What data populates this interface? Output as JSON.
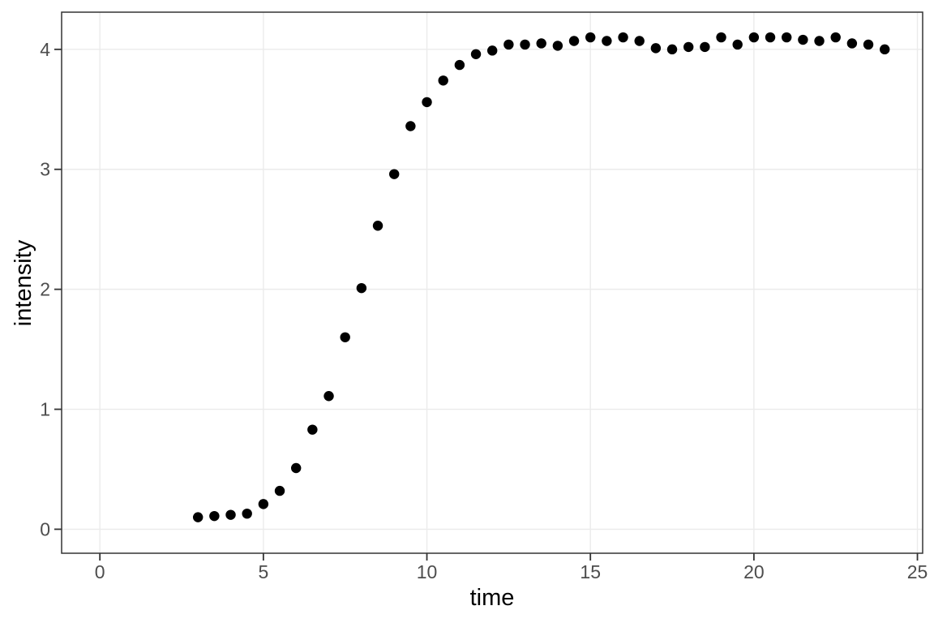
{
  "chart_data": {
    "type": "scatter",
    "title": "",
    "xlabel": "time",
    "ylabel": "intensity",
    "legend": "none",
    "grid": "major-only",
    "x_breaks": [
      0,
      5,
      10,
      15,
      20,
      25
    ],
    "y_breaks": [
      0,
      1,
      2,
      3,
      4
    ],
    "xlim": [
      -1.17,
      25.16
    ],
    "ylim": [
      -0.2,
      4.31
    ],
    "points": [
      [
        3.0,
        0.1
      ],
      [
        3.5,
        0.11
      ],
      [
        4.0,
        0.12
      ],
      [
        4.5,
        0.13
      ],
      [
        5.0,
        0.21
      ],
      [
        5.5,
        0.32
      ],
      [
        6.0,
        0.51
      ],
      [
        6.5,
        0.83
      ],
      [
        7.0,
        1.11
      ],
      [
        7.5,
        1.6
      ],
      [
        8.0,
        2.01
      ],
      [
        8.5,
        2.53
      ],
      [
        9.0,
        2.96
      ],
      [
        9.5,
        3.36
      ],
      [
        10.0,
        3.56
      ],
      [
        10.5,
        3.74
      ],
      [
        11.0,
        3.87
      ],
      [
        11.5,
        3.96
      ],
      [
        12.0,
        3.99
      ],
      [
        12.5,
        4.04
      ],
      [
        13.0,
        4.04
      ],
      [
        13.5,
        4.05
      ],
      [
        14.0,
        4.03
      ],
      [
        14.5,
        4.07
      ],
      [
        15.0,
        4.1
      ],
      [
        15.5,
        4.07
      ],
      [
        16.0,
        4.1
      ],
      [
        16.5,
        4.07
      ],
      [
        17.0,
        4.01
      ],
      [
        17.5,
        4.0
      ],
      [
        18.0,
        4.02
      ],
      [
        18.5,
        4.02
      ],
      [
        19.0,
        4.1
      ],
      [
        19.5,
        4.04
      ],
      [
        20.0,
        4.1
      ],
      [
        20.5,
        4.1
      ],
      [
        21.0,
        4.1
      ],
      [
        21.5,
        4.08
      ],
      [
        22.0,
        4.07
      ],
      [
        22.5,
        4.1
      ],
      [
        23.0,
        4.05
      ],
      [
        23.5,
        4.04
      ],
      [
        24.0,
        4.0
      ]
    ]
  },
  "style": {
    "background": "#FFFFFF",
    "panel_background": "#FFFFFF",
    "grid_color": "#EBEBEB",
    "panel_border_color": "#333333",
    "tick_color": "#333333",
    "tick_label_color": "#4D4D4D",
    "axis_title_color": "#000000",
    "point_color": "#000000"
  }
}
